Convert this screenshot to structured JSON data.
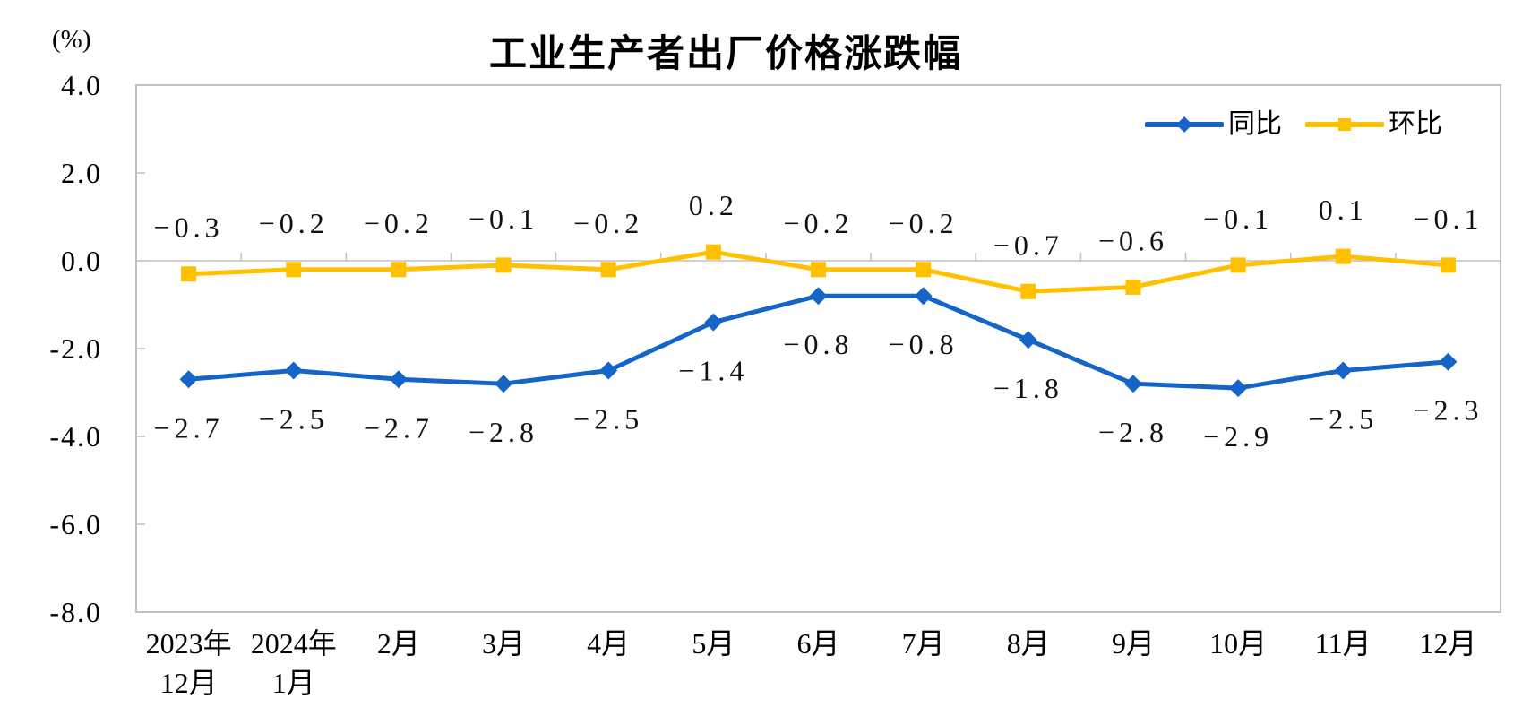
{
  "chart": {
    "title": "工业生产者出厂价格涨跌幅",
    "unit_label": "(%)"
  },
  "chart_data": {
    "type": "line",
    "title": "工业生产者出厂价格涨跌幅",
    "unit": "%",
    "unit_label": "(%)",
    "categories": [
      "2023年\n12月",
      "2024年\n1月",
      "2月",
      "3月",
      "4月",
      "5月",
      "6月",
      "7月",
      "8月",
      "9月",
      "10月",
      "11月",
      "12月"
    ],
    "series": [
      {
        "name": "同比",
        "color": "#1565C8",
        "marker": "diamond",
        "label_position": "below",
        "values": [
          -2.7,
          -2.5,
          -2.7,
          -2.8,
          -2.5,
          -1.4,
          -0.8,
          -0.8,
          -1.8,
          -2.8,
          -2.9,
          -2.5,
          -2.3
        ]
      },
      {
        "name": "环比",
        "color": "#FFC000",
        "marker": "square",
        "label_position": "above",
        "values": [
          -0.3,
          -0.2,
          -0.2,
          -0.1,
          -0.2,
          0.2,
          -0.2,
          -0.2,
          -0.7,
          -0.6,
          -0.1,
          0.1,
          -0.1
        ]
      }
    ],
    "y_axis": {
      "min": -8.0,
      "max": 4.0,
      "tick_step": 2.0,
      "tick_labels": [
        "4.0",
        "2.0",
        "0.0",
        "-2.0",
        "-4.0",
        "-6.0",
        "-8.0"
      ]
    },
    "legend_position": "top-right",
    "grid": false,
    "data_labels": true,
    "axis_color": "#C0C0C0"
  }
}
